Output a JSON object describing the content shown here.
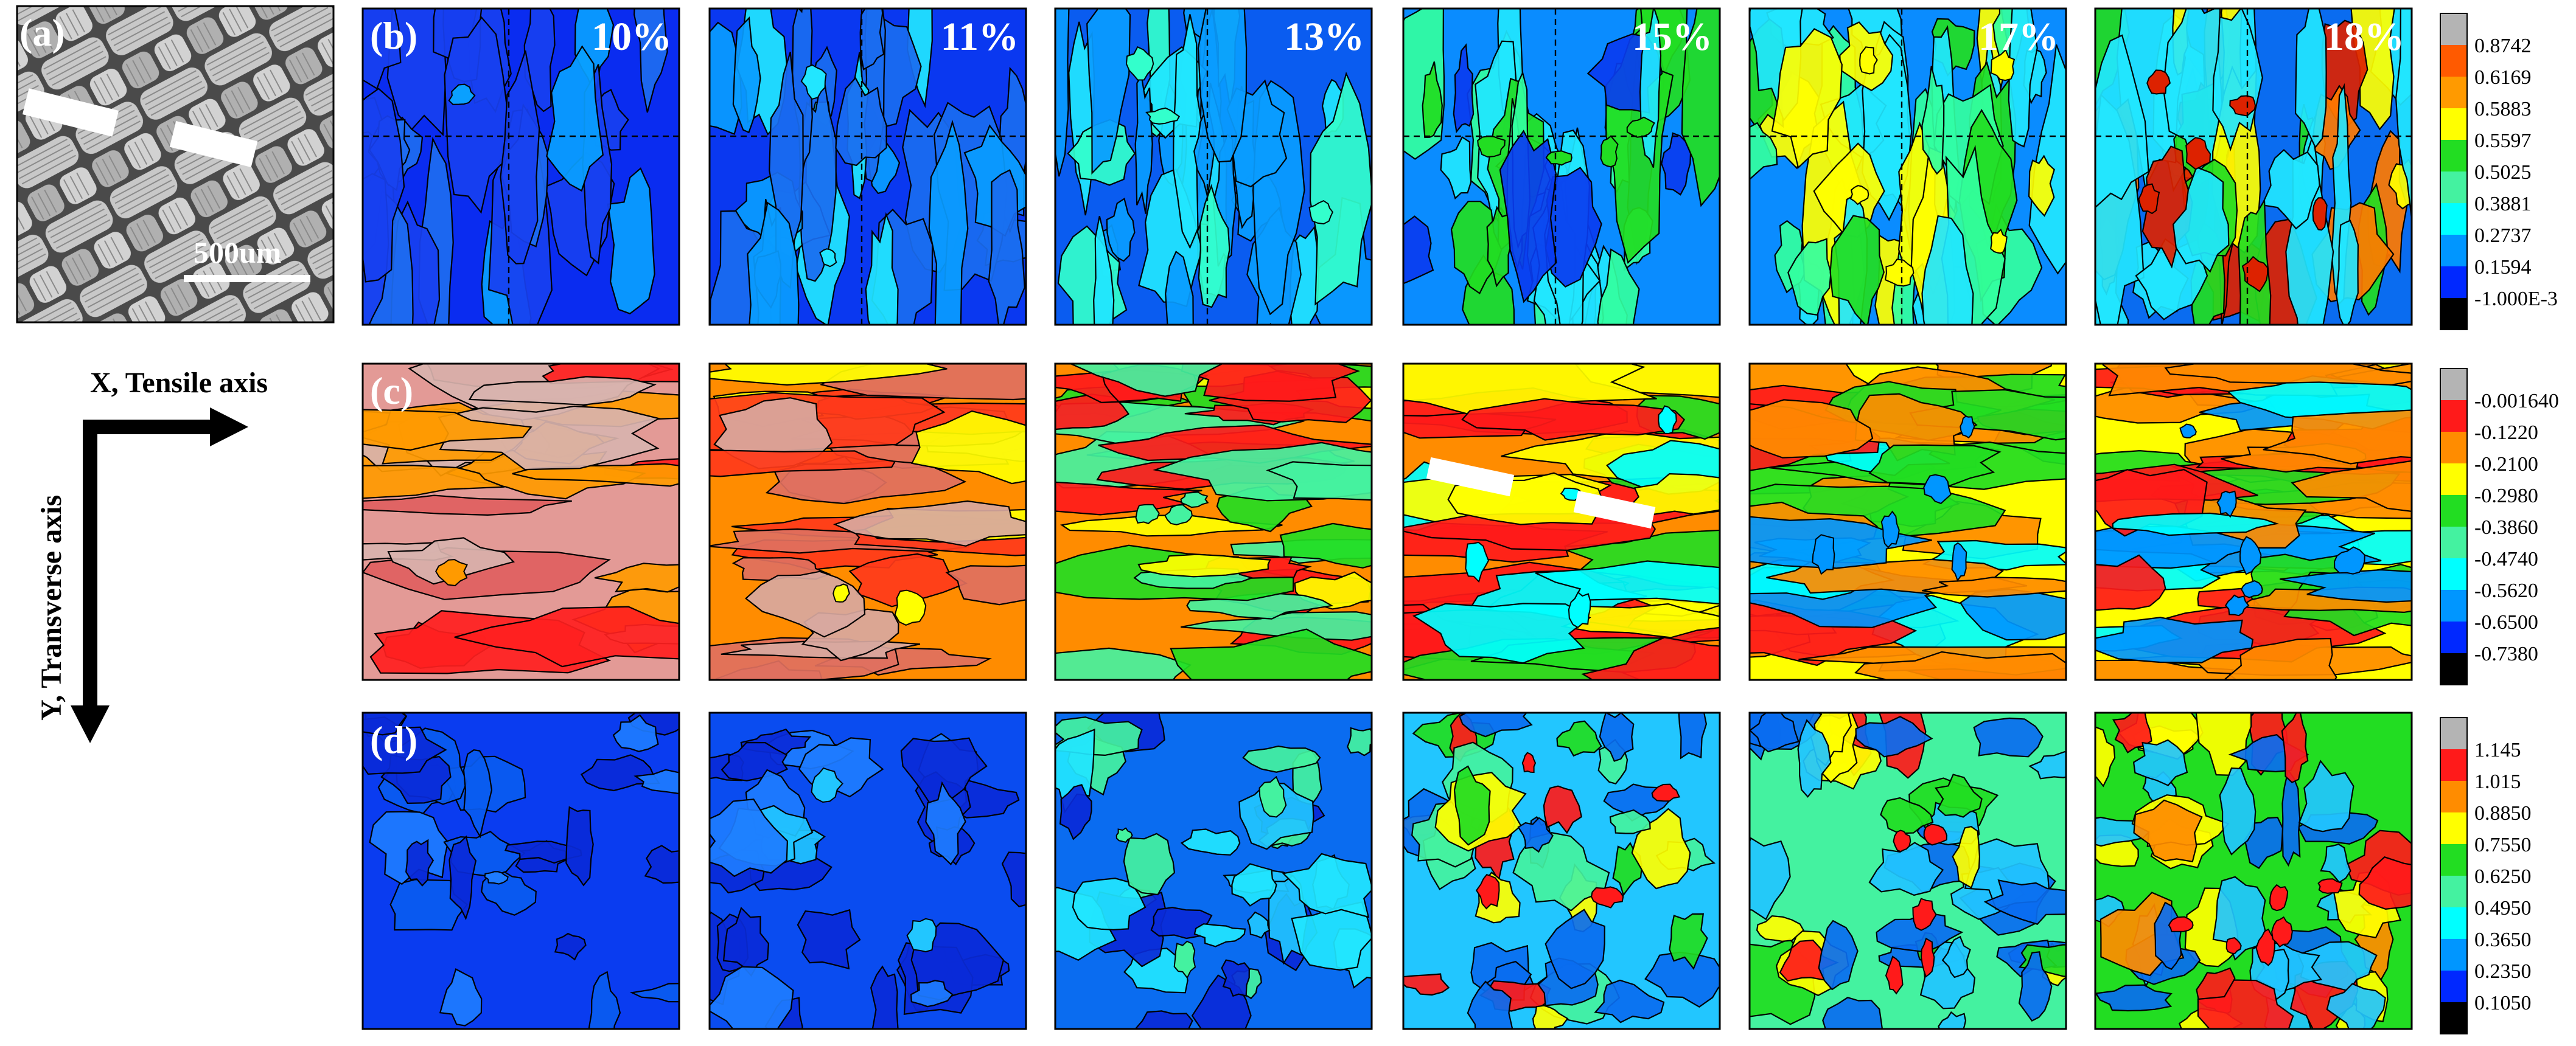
{
  "panel_labels": {
    "a": "(a)",
    "b": "(b)",
    "c": "(c)",
    "d": "(d)"
  },
  "micrograph": {
    "scale_bar_label": "500um"
  },
  "axes": {
    "x_label": "X, Tensile axis",
    "y_label": "Y, Transverse axis"
  },
  "strain_levels": [
    "10%",
    "11%",
    "13%",
    "15%",
    "17%",
    "18%"
  ],
  "colorbars": {
    "b": {
      "values": [
        "0.8742",
        "0.6169",
        "0.5883",
        "0.5597",
        "0.5025",
        "0.3881",
        "0.2737",
        "0.1594",
        "-1.000E-3"
      ],
      "colors": [
        "#b4b4b4",
        "#ff5a00",
        "#ff9a00",
        "#ffff00",
        "#22dd22",
        "#44f2a0",
        "#00ffff",
        "#0096ff",
        "#0028ff",
        "#000000"
      ]
    },
    "c": {
      "values": [
        "-0.001640",
        "-0.1220",
        "-0.2100",
        "-0.2980",
        "-0.3860",
        "-0.4740",
        "-0.5620",
        "-0.6500",
        "-0.7380"
      ],
      "colors": [
        "#b4b4b4",
        "#ff1a1a",
        "#ff8c00",
        "#ffff00",
        "#22dd22",
        "#44f2a0",
        "#00ffff",
        "#0096ff",
        "#0028ff",
        "#000000"
      ]
    },
    "d": {
      "values": [
        "1.145",
        "1.015",
        "0.8850",
        "0.7550",
        "0.6250",
        "0.4950",
        "0.3650",
        "0.2350",
        "0.1050"
      ],
      "colors": [
        "#b4b4b4",
        "#ff1a1a",
        "#ff8c00",
        "#ffff00",
        "#22dd22",
        "#44f2a0",
        "#00ffff",
        "#0096ff",
        "#0028ff",
        "#000000"
      ]
    }
  }
}
